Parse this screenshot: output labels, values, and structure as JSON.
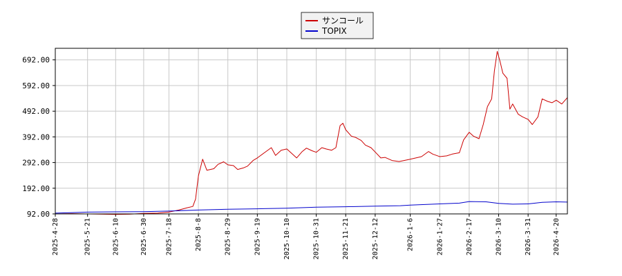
{
  "chart_data": {
    "type": "line",
    "title": "",
    "xlabel": "",
    "ylabel": "",
    "grid": true,
    "legend_position": "top-center",
    "ylim": [
      92,
      737
    ],
    "xlim": [
      "2025-04-28",
      "2026-04-28"
    ],
    "y_ticks": [
      "92.00",
      "192.00",
      "292.00",
      "392.00",
      "492.00",
      "592.00",
      "692.00"
    ],
    "x_ticks": [
      "2025-4-28",
      "2025-5-21",
      "2025-6-10",
      "2025-6-30",
      "2025-7-18",
      "2025-8-8",
      "2025-8-29",
      "2025-9-19",
      "2025-10-10",
      "2025-10-31",
      "2025-11-21",
      "2025-12-12",
      "2026-1-6",
      "2026-1-27",
      "2026-2-17",
      "2026-3-10",
      "2026-3-31",
      "2026-4-20"
    ],
    "series": [
      {
        "name": "サンコール",
        "color": "#cc0000",
        "points": [
          [
            "2025-04-28",
            92
          ],
          [
            "2025-05-10",
            93
          ],
          [
            "2025-05-21",
            92
          ],
          [
            "2025-06-01",
            91
          ],
          [
            "2025-06-10",
            90
          ],
          [
            "2025-06-20",
            91
          ],
          [
            "2025-06-30",
            94
          ],
          [
            "2025-07-10",
            95
          ],
          [
            "2025-07-18",
            99
          ],
          [
            "2025-07-25",
            107
          ],
          [
            "2025-07-31",
            116
          ],
          [
            "2025-08-04",
            121
          ],
          [
            "2025-08-06",
            150
          ],
          [
            "2025-08-07",
            195
          ],
          [
            "2025-08-08",
            240
          ],
          [
            "2025-08-11",
            305
          ],
          [
            "2025-08-14",
            262
          ],
          [
            "2025-08-19",
            268
          ],
          [
            "2025-08-22",
            285
          ],
          [
            "2025-08-26",
            295
          ],
          [
            "2025-08-29",
            283
          ],
          [
            "2025-09-02",
            280
          ],
          [
            "2025-09-05",
            265
          ],
          [
            "2025-09-09",
            271
          ],
          [
            "2025-09-12",
            278
          ],
          [
            "2025-09-16",
            300
          ],
          [
            "2025-09-19",
            310
          ],
          [
            "2025-09-24",
            330
          ],
          [
            "2025-09-29",
            350
          ],
          [
            "2025-10-02",
            320
          ],
          [
            "2025-10-06",
            340
          ],
          [
            "2025-10-10",
            345
          ],
          [
            "2025-10-14",
            325
          ],
          [
            "2025-10-17",
            310
          ],
          [
            "2025-10-21",
            335
          ],
          [
            "2025-10-24",
            348
          ],
          [
            "2025-10-28",
            338
          ],
          [
            "2025-10-31",
            332
          ],
          [
            "2025-11-04",
            350
          ],
          [
            "2025-11-07",
            345
          ],
          [
            "2025-11-11",
            340
          ],
          [
            "2025-11-14",
            350
          ],
          [
            "2025-11-17",
            436
          ],
          [
            "2025-11-19",
            445
          ],
          [
            "2025-11-21",
            420
          ],
          [
            "2025-11-25",
            395
          ],
          [
            "2025-11-28",
            390
          ],
          [
            "2025-12-02",
            378
          ],
          [
            "2025-12-05",
            360
          ],
          [
            "2025-12-09",
            350
          ],
          [
            "2025-12-12",
            333
          ],
          [
            "2025-12-16",
            310
          ],
          [
            "2025-12-19",
            312
          ],
          [
            "2025-12-24",
            300
          ],
          [
            "2025-12-29",
            296
          ],
          [
            "2026-01-06",
            305
          ],
          [
            "2026-01-10",
            310
          ],
          [
            "2026-01-14",
            315
          ],
          [
            "2026-01-19",
            335
          ],
          [
            "2026-01-22",
            325
          ],
          [
            "2026-01-27",
            315
          ],
          [
            "2026-02-01",
            318
          ],
          [
            "2026-02-05",
            325
          ],
          [
            "2026-02-10",
            330
          ],
          [
            "2026-02-13",
            380
          ],
          [
            "2026-02-17",
            410
          ],
          [
            "2026-02-20",
            395
          ],
          [
            "2026-02-24",
            385
          ],
          [
            "2026-02-27",
            440
          ],
          [
            "2026-03-02",
            510
          ],
          [
            "2026-03-05",
            540
          ],
          [
            "2026-03-07",
            650
          ],
          [
            "2026-03-09",
            725
          ],
          [
            "2026-03-11",
            685
          ],
          [
            "2026-03-13",
            640
          ],
          [
            "2026-03-16",
            620
          ],
          [
            "2026-03-18",
            500
          ],
          [
            "2026-03-20",
            520
          ],
          [
            "2026-03-24",
            480
          ],
          [
            "2026-03-27",
            470
          ],
          [
            "2026-03-31",
            460
          ],
          [
            "2026-04-03",
            440
          ],
          [
            "2026-04-07",
            470
          ],
          [
            "2026-04-10",
            540
          ],
          [
            "2026-04-14",
            530
          ],
          [
            "2026-04-17",
            525
          ],
          [
            "2026-04-20",
            535
          ],
          [
            "2026-04-24",
            520
          ],
          [
            "2026-04-28",
            545
          ]
        ]
      },
      {
        "name": "TOPIX",
        "color": "#0000cc",
        "points": [
          [
            "2025-04-28",
            95
          ],
          [
            "2025-05-10",
            97
          ],
          [
            "2025-05-21",
            99
          ],
          [
            "2025-06-10",
            100
          ],
          [
            "2025-06-30",
            101
          ],
          [
            "2025-07-18",
            103
          ],
          [
            "2025-08-08",
            107
          ],
          [
            "2025-08-29",
            110
          ],
          [
            "2025-09-19",
            112
          ],
          [
            "2025-10-10",
            114
          ],
          [
            "2025-10-31",
            118
          ],
          [
            "2025-11-21",
            120
          ],
          [
            "2025-12-12",
            122
          ],
          [
            "2025-12-30",
            124
          ],
          [
            "2026-01-06",
            126
          ],
          [
            "2026-01-27",
            131
          ],
          [
            "2026-02-10",
            134
          ],
          [
            "2026-02-17",
            140
          ],
          [
            "2026-03-01",
            139
          ],
          [
            "2026-03-10",
            133
          ],
          [
            "2026-03-20",
            130
          ],
          [
            "2026-03-31",
            131
          ],
          [
            "2026-04-10",
            137
          ],
          [
            "2026-04-20",
            139
          ],
          [
            "2026-04-28",
            138
          ]
        ]
      }
    ]
  }
}
